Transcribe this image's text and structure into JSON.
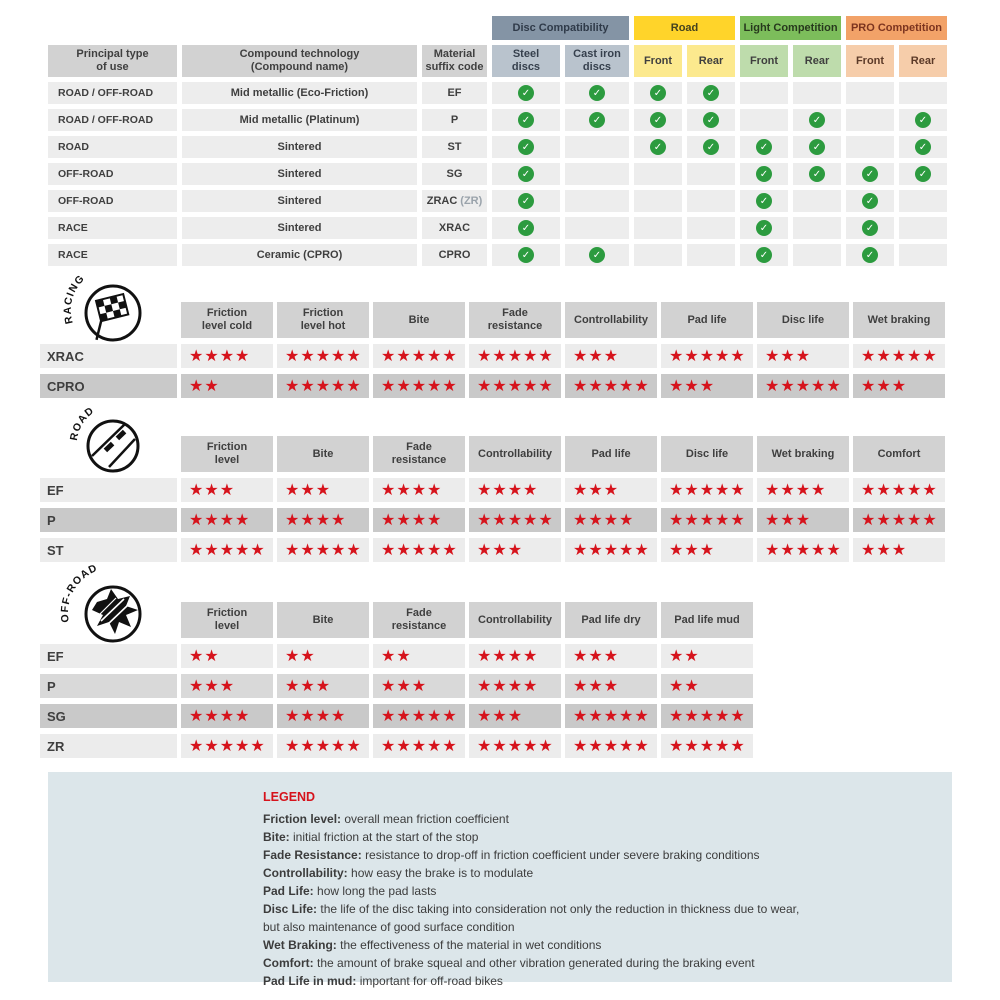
{
  "colors": {
    "star_red": "#d6131c",
    "check_green": "#2c9b3f",
    "header_gray": "#d2d2d2",
    "row_light": "#ececec",
    "row_medium": "#d9d9d9",
    "row_dark": "#c9c9c9",
    "legend_bg": "#dce6ea"
  },
  "compat_table": {
    "col_headers": [
      [
        "Principal type",
        "of use"
      ],
      [
        "Compound technology",
        "(Compound name)"
      ],
      [
        "Material",
        "suffix code"
      ]
    ],
    "groups": [
      {
        "label": "Disc Compatibility",
        "bg": "#8494a5",
        "fg": "#2f3a49",
        "sub_bg": "#b9c3cd",
        "sub_fg": "#36404d",
        "subs": [
          [
            "Steel",
            "discs"
          ],
          [
            "Cast iron",
            "discs"
          ]
        ]
      },
      {
        "label": "Road",
        "bg": "#ffd42a",
        "fg": "#44421f",
        "sub_bg": "#fce98e",
        "sub_fg": "#3f3f3f",
        "subs": [
          [
            "Front"
          ],
          [
            "Rear"
          ]
        ]
      },
      {
        "label": "Light Competition",
        "bg": "#7cbd5b",
        "fg": "#27391d",
        "sub_bg": "#bedcac",
        "sub_fg": "#3f3f3f",
        "subs": [
          [
            "Front"
          ],
          [
            "Rear"
          ]
        ]
      },
      {
        "label": "PRO Competition",
        "bg": "#f2a268",
        "fg": "#7c341f",
        "sub_bg": "#f6cdaa",
        "sub_fg": "#5c3a28",
        "subs": [
          [
            "Front"
          ],
          [
            "Rear"
          ]
        ]
      }
    ],
    "rows": [
      {
        "use": "ROAD / OFF-ROAD",
        "compound": "Mid metallic (Eco-Friction)",
        "code": "EF",
        "code_note": "",
        "checks": [
          1,
          1,
          1,
          1,
          0,
          0,
          0,
          0
        ]
      },
      {
        "use": "ROAD / OFF-ROAD",
        "compound": "Mid metallic (Platinum)",
        "code": "P",
        "code_note": "",
        "checks": [
          1,
          1,
          1,
          1,
          0,
          1,
          0,
          1
        ]
      },
      {
        "use": "ROAD",
        "compound": "Sintered",
        "code": "ST",
        "code_note": "",
        "checks": [
          1,
          0,
          1,
          1,
          1,
          1,
          0,
          1
        ]
      },
      {
        "use": "OFF-ROAD",
        "compound": "Sintered",
        "code": "SG",
        "code_note": "",
        "checks": [
          1,
          0,
          0,
          0,
          1,
          1,
          1,
          1
        ]
      },
      {
        "use": "OFF-ROAD",
        "compound": "Sintered",
        "code": "ZRAC",
        "code_note": "(ZR)",
        "checks": [
          1,
          0,
          0,
          0,
          1,
          0,
          1,
          0
        ]
      },
      {
        "use": "RACE",
        "compound": "Sintered",
        "code": "XRAC",
        "code_note": "",
        "checks": [
          1,
          0,
          0,
          0,
          1,
          0,
          1,
          0
        ]
      },
      {
        "use": "RACE",
        "compound": "Ceramic (CPRO)",
        "code": "CPRO",
        "code_note": "",
        "checks": [
          1,
          1,
          0,
          0,
          1,
          0,
          1,
          0
        ]
      }
    ]
  },
  "rating_sections": [
    {
      "id": "racing",
      "icon": "racing-flag-icon",
      "icon_label": "RACING",
      "columns": [
        [
          "Friction",
          "level cold"
        ],
        [
          "Friction",
          "level hot"
        ],
        [
          "Bite"
        ],
        [
          "Fade",
          "resistance"
        ],
        [
          "Controllability"
        ],
        [
          "Pad life"
        ],
        [
          "Disc life"
        ],
        [
          "Wet braking"
        ]
      ],
      "rows": [
        {
          "code": "XRAC",
          "shade": "light",
          "stars": [
            4,
            5,
            5,
            5,
            3,
            5,
            3,
            5
          ]
        },
        {
          "code": "CPRO",
          "shade": "dark",
          "stars": [
            2,
            5,
            5,
            5,
            5,
            3,
            5,
            3
          ]
        }
      ]
    },
    {
      "id": "road",
      "icon": "road-icon",
      "icon_label": "ROAD",
      "columns": [
        [
          "Friction",
          "level"
        ],
        [
          "Bite"
        ],
        [
          "Fade",
          "resistance"
        ],
        [
          "Controllability"
        ],
        [
          "Pad life"
        ],
        [
          "Disc life"
        ],
        [
          "Wet braking"
        ],
        [
          "Comfort"
        ]
      ],
      "rows": [
        {
          "code": "EF",
          "shade": "light",
          "stars": [
            3,
            3,
            4,
            4,
            3,
            5,
            4,
            5
          ]
        },
        {
          "code": "P",
          "shade": "dark",
          "stars": [
            4,
            4,
            4,
            5,
            4,
            5,
            3,
            5
          ]
        },
        {
          "code": "ST",
          "shade": "light",
          "stars": [
            5,
            5,
            5,
            3,
            5,
            3,
            5,
            3
          ]
        }
      ]
    },
    {
      "id": "offroad",
      "icon": "offroad-mud-icon",
      "icon_label": "OFF-ROAD",
      "columns": [
        [
          "Friction",
          "level"
        ],
        [
          "Bite"
        ],
        [
          "Fade",
          "resistance"
        ],
        [
          "Controllability"
        ],
        [
          "Pad life dry"
        ],
        [
          "Pad life mud"
        ]
      ],
      "rows": [
        {
          "code": "EF",
          "shade": "light",
          "stars": [
            2,
            2,
            2,
            4,
            3,
            2
          ]
        },
        {
          "code": "P",
          "shade": "medium",
          "stars": [
            3,
            3,
            3,
            4,
            3,
            2
          ]
        },
        {
          "code": "SG",
          "shade": "dark",
          "stars": [
            4,
            4,
            5,
            3,
            5,
            5
          ]
        },
        {
          "code": "ZR",
          "shade": "light",
          "stars": [
            5,
            5,
            5,
            5,
            5,
            5
          ]
        }
      ]
    }
  ],
  "legend": {
    "title": "LEGEND",
    "entries": [
      {
        "term": "Friction level:",
        "desc": "overall mean friction coefficient"
      },
      {
        "term": "Bite:",
        "desc": "initial friction at the start of the stop"
      },
      {
        "term": "Fade Resistance:",
        "desc": "resistance to drop-off in friction coefficient under severe braking conditions"
      },
      {
        "term": "Controllability:",
        "desc": "how easy the brake is to modulate"
      },
      {
        "term": "Pad Life:",
        "desc": "how long the pad lasts"
      },
      {
        "term": "Disc Life:",
        "desc": "the life of the disc taking into consideration not only the reduction in thickness due to wear,"
      },
      {
        "term": "",
        "desc": "but also maintenance of good surface condition"
      },
      {
        "term": "Wet Braking:",
        "desc": "the effectiveness of the material in wet conditions"
      },
      {
        "term": "Comfort:",
        "desc": "the amount of brake squeal and other vibration generated during the braking event"
      },
      {
        "term": "Pad Life in mud:",
        "desc": "important for off-road bikes"
      }
    ]
  }
}
